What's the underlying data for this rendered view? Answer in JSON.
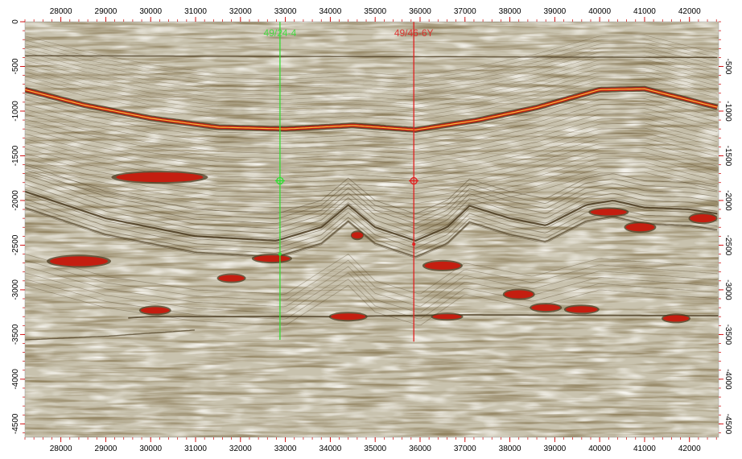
{
  "view": {
    "x_axis": {
      "min": 27200,
      "max": 42650,
      "major_ticks": [
        28000,
        29000,
        30000,
        31000,
        32000,
        33000,
        34000,
        35000,
        36000,
        37000,
        38000,
        39000,
        40000,
        41000,
        42000
      ],
      "minor_step": 200
    },
    "y_axis": {
      "min": 0,
      "max": 4650,
      "left_ticks": [
        0,
        -500,
        -1000,
        -1500,
        -2000,
        -2500,
        -3000,
        -3500,
        -4000,
        -4500
      ],
      "right_ticks": [
        -500,
        -1000,
        -1500,
        -2000,
        -2500,
        -3000,
        -3500,
        -4000,
        -4500
      ],
      "minor_step": 100
    },
    "colors": {
      "axis_ticks": "#cc0000",
      "background": "#c8c2ae",
      "dark_event": "#4a3a1e",
      "strong_event": "#c41e10",
      "hot_event": "#f5c040"
    },
    "wells": [
      {
        "name": "49/24-4",
        "color": "#33dd33",
        "x": 32880,
        "top_depth": 0,
        "bottom_depth": 3560,
        "marker_depth": 1780,
        "dot_depths": [
          2600
        ]
      },
      {
        "name": "49/46-6Y",
        "color": "#e02020",
        "x": 35860,
        "top_depth": 0,
        "bottom_depth": 3580,
        "marker_depth": 1780,
        "dot_depths": [
          2490
        ]
      }
    ]
  }
}
